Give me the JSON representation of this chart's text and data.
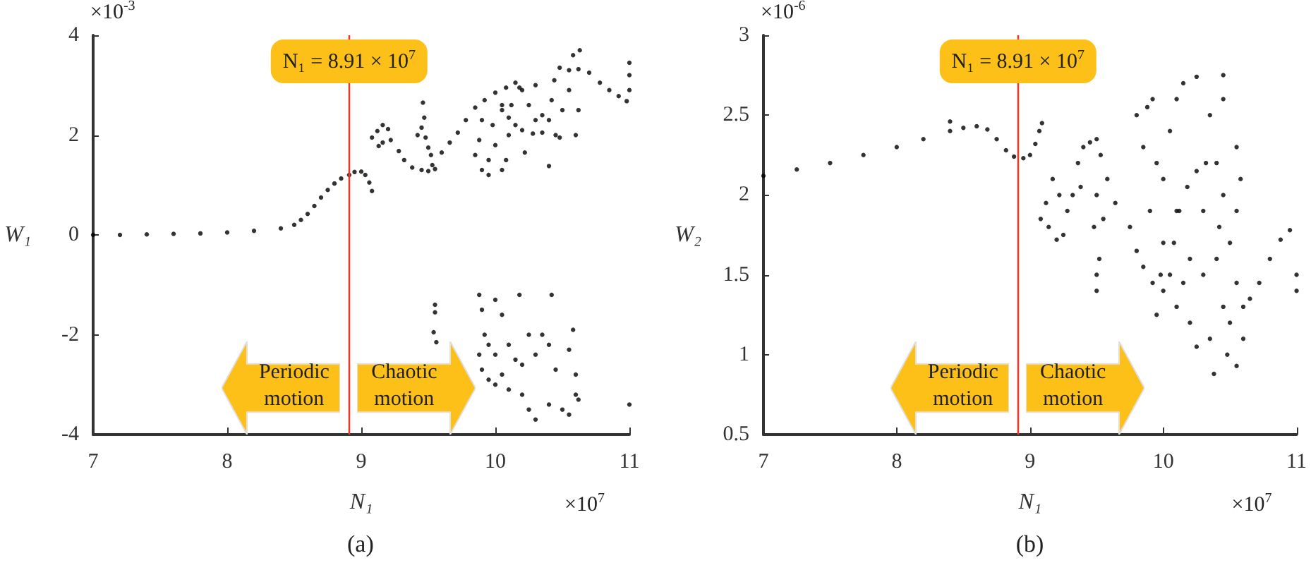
{
  "chart_data": [
    {
      "type": "scatter",
      "xlabel": "N₁",
      "ylabel": "W₁",
      "xlim": [
        7,
        11
      ],
      "ylim": [
        -4,
        4
      ],
      "xticks": [
        7,
        8,
        9,
        10,
        11
      ],
      "yticks": [
        -4,
        -2,
        0,
        2,
        4
      ],
      "grid": false,
      "marker": "circle",
      "ref_lines": [
        {
          "axis": "x",
          "value": 8.91,
          "label": "N₁ = 8.91 × 10$^{7}$",
          "color": "#e8392b"
        }
      ],
      "annotations": [
        "×10$^{-3}$",
        "×10$^{7}$",
        "Periodic motion",
        "Chaotic motion",
        "(a)"
      ],
      "series": [
        {
          "color": "#000000",
          "x": [
            7,
            7.2,
            7.4,
            7.6,
            7.8,
            8.0,
            8.2,
            8.4,
            8.5,
            8.55,
            8.6,
            8.65,
            8.7,
            8.75,
            8.8,
            8.85,
            8.91,
            8.95,
            9.0,
            9.03,
            9.06,
            9.08,
            9.08,
            9.12,
            9.16,
            9.2,
            9.16,
            9.13,
            9.22,
            9.28,
            9.32,
            9.38,
            9.45,
            9.5,
            9.53,
            9.52,
            9.5,
            9.48,
            9.45,
            9.47,
            9.46,
            9.42,
            9.55,
            9.6,
            9.66,
            9.72,
            9.78,
            9.85,
            9.92,
            10.0,
            10.08,
            10.15,
            9.85,
            9.9,
            9.95,
            9.88,
            9.95,
            10.0,
            10.05,
            10.08,
            10.1,
            9.98,
            10.05,
            10.12,
            9.9,
            10.05,
            10.1,
            10.15,
            10.2,
            10.28,
            10.35,
            10.4,
            10.42,
            10.44,
            10.48,
            10.55,
            10.62,
            10.7,
            10.78,
            10.85,
            10.92,
            10.98,
            11.0,
            11.0,
            11.0,
            10.2,
            10.25,
            10.3,
            10.35,
            10.45,
            10.5,
            10.55,
            10.6,
            10.62,
            10.58,
            10.63,
            10.48,
            10.4,
            10.22,
            10.18,
            10.3,
            9.55,
            9.55,
            9.54,
            9.56,
            9.88,
            9.9,
            9.92,
            9.88,
            9.9,
            9.95,
            10.0,
            10.05,
            10.0,
            10.05,
            10.1,
            10.15,
            10.1,
            10.2,
            10.18,
            10.25,
            10.3,
            10.25,
            10.35,
            10.4,
            10.42,
            10.45,
            10.4,
            10.5,
            10.55,
            10.58,
            10.6,
            10.6,
            10.55,
            10.62,
            10.3,
            10.2,
            11.0,
            10.0,
            9.95
          ],
          "values": [
            0,
            0,
            0.01,
            0.02,
            0.03,
            0.05,
            0.08,
            0.13,
            0.2,
            0.3,
            0.42,
            0.58,
            0.75,
            0.9,
            1.03,
            1.13,
            1.2,
            1.26,
            1.27,
            1.2,
            1.05,
            0.88,
            1.95,
            2.08,
            2.2,
            2.12,
            1.85,
            1.78,
            1.9,
            1.68,
            1.5,
            1.35,
            1.3,
            1.28,
            1.4,
            1.6,
            1.75,
            1.95,
            2.15,
            2.35,
            2.65,
            2.0,
            1.32,
            1.65,
            1.85,
            2.05,
            2.3,
            2.55,
            2.7,
            2.85,
            2.95,
            3.05,
            1.6,
            1.3,
            1.2,
            1.9,
            1.5,
            1.8,
            1.3,
            1.5,
            2.0,
            2.2,
            2.5,
            2.6,
            2.3,
            2.6,
            2.35,
            2.2,
            2.1,
            2.03,
            2.05,
            2.3,
            2.7,
            3.1,
            3.35,
            3.3,
            3.32,
            3.25,
            3.05,
            2.9,
            2.78,
            2.68,
            2.9,
            3.2,
            3.45,
            2.9,
            2.6,
            3.0,
            2.4,
            2.0,
            2.5,
            2.9,
            2.0,
            2.5,
            3.6,
            3.7,
            1.95,
            1.38,
            1.65,
            2.95,
            2.3,
            -1.4,
            -1.55,
            -1.95,
            -2.15,
            -1.2,
            -1.5,
            -2.0,
            -2.4,
            -2.7,
            -2.9,
            -3.0,
            -2.8,
            -1.3,
            -1.6,
            -2.2,
            -2.5,
            -3.1,
            -3.2,
            -1.2,
            -2.0,
            -2.4,
            -3.5,
            -2.0,
            -2.2,
            -1.2,
            -2.7,
            -3.4,
            -3.5,
            -2.3,
            -1.9,
            -2.8,
            -3.2,
            -3.6,
            -3.3,
            -3.7,
            -2.6,
            -3.4,
            -2.4,
            -2.2
          ]
        }
      ]
    },
    {
      "type": "scatter",
      "xlabel": "N₁",
      "ylabel": "W₂",
      "xlim": [
        7,
        11
      ],
      "ylim": [
        0.5,
        3
      ],
      "xticks": [
        7,
        8,
        9,
        10,
        11
      ],
      "yticks": [
        0.5,
        1,
        1.5,
        2,
        2.5,
        3
      ],
      "grid": false,
      "marker": "circle",
      "ref_lines": [
        {
          "axis": "x",
          "value": 8.91,
          "label": "N₁ = 8.91 × 10$^{7}$",
          "color": "#e8392b"
        }
      ],
      "annotations": [
        "×10$^{-6}$",
        "×10$^{7}$",
        "Periodic motion",
        "Chaotic motion",
        "(b)"
      ],
      "series": [
        {
          "color": "#000000",
          "x": [
            7,
            7.25,
            7.5,
            7.75,
            8.0,
            8.2,
            8.4,
            8.4,
            8.5,
            8.6,
            8.68,
            8.75,
            8.82,
            8.88,
            8.95,
            9.0,
            9.04,
            9.07,
            9.09,
            9.08,
            9.12,
            9.17,
            9.22,
            9.14,
            9.2,
            9.25,
            9.28,
            9.32,
            9.36,
            9.4,
            9.45,
            9.5,
            9.53,
            9.58,
            9.64,
            9.5,
            9.48,
            9.5,
            9.5,
            9.52,
            9.55,
            9.38,
            9.75,
            9.8,
            9.85,
            9.92,
            10.0,
            10.05,
            10.08,
            10.12,
            10.18,
            10.25,
            10.32,
            10.4,
            10.45,
            10.5,
            10.55,
            10.6,
            10.65,
            10.72,
            10.8,
            10.88,
            10.95,
            11.0,
            11.0,
            9.8,
            9.85,
            9.88,
            9.92,
            9.95,
            10.0,
            10.05,
            10.1,
            10.15,
            9.9,
            10.0,
            10.1,
            10.2,
            10.2,
            10.3,
            10.35,
            10.38,
            10.25,
            10.45,
            10.45,
            10.55,
            10.58,
            10.55,
            10.5,
            10.48,
            10.55,
            10.6,
            10.3,
            10.4,
            10.35,
            10.45,
            9.95,
            10.1,
            10.25,
            9.98,
            10.15,
            10.42
          ],
          "values": [
            2.12,
            2.16,
            2.2,
            2.25,
            2.3,
            2.35,
            2.4,
            2.46,
            2.42,
            2.43,
            2.41,
            2.35,
            2.28,
            2.24,
            2.23,
            2.25,
            2.32,
            2.4,
            2.45,
            1.85,
            1.95,
            2.1,
            2.0,
            1.8,
            1.72,
            1.75,
            1.9,
            2.0,
            2.2,
            2.3,
            2.33,
            2.35,
            2.25,
            2.1,
            1.95,
            2.0,
            1.8,
            1.5,
            1.4,
            1.6,
            1.85,
            2.05,
            1.8,
            1.65,
            1.55,
            1.45,
            1.4,
            1.5,
            1.7,
            1.9,
            2.05,
            2.15,
            2.2,
            2.2,
            2.0,
            1.7,
            1.45,
            1.3,
            1.35,
            1.45,
            1.6,
            1.72,
            1.78,
            1.5,
            1.4,
            2.5,
            2.3,
            2.55,
            2.6,
            2.2,
            2.1,
            2.4,
            2.6,
            2.7,
            1.9,
            1.7,
            1.3,
            1.6,
            1.2,
            1.5,
            1.1,
            0.88,
            1.05,
            2.75,
            2.6,
            2.3,
            2.1,
            1.9,
            1.2,
            1.0,
            0.93,
            1.1,
            1.9,
            1.6,
            2.5,
            1.3,
            1.25,
            1.9,
            2.74,
            1.5,
            1.45,
            1.8
          ]
        }
      ]
    }
  ]
}
